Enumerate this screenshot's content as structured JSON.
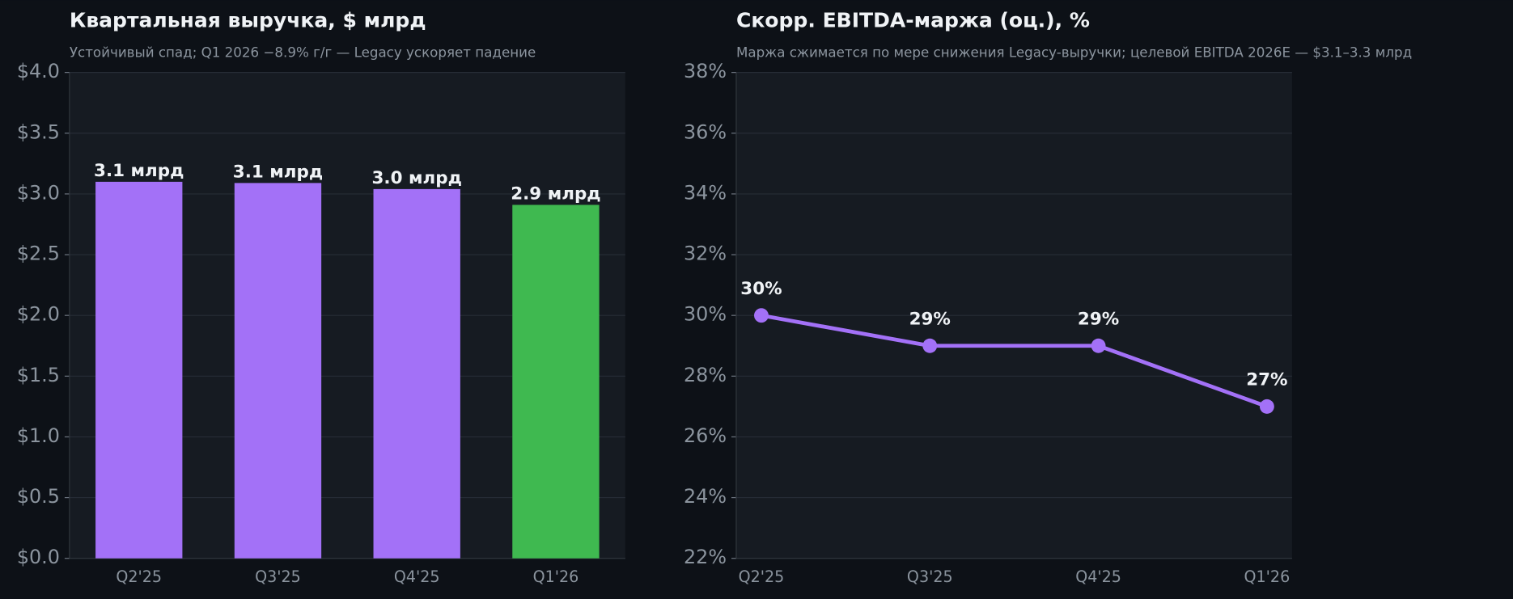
{
  "chart_data": [
    {
      "type": "bar",
      "title": "Квартальная выручка, $ млрд",
      "subtitle": "Устойчивый спад; Q1 2026 −8.9% г/г — Legacy ускоряет падение",
      "categories": [
        "Q2'25",
        "Q3'25",
        "Q4'25",
        "Q1'26"
      ],
      "values": [
        3.1,
        3.09,
        3.04,
        2.91
      ],
      "value_labels": [
        "3.1 млрд",
        "3.1 млрд",
        "3.0 млрд",
        "2.9 млрд"
      ],
      "colors": [
        "#a371f7",
        "#a371f7",
        "#a371f7",
        "#3fb950"
      ],
      "ylim": [
        0,
        4
      ],
      "yticks": [
        {
          "value": 0,
          "label": "$0.0"
        },
        {
          "value": 0.5,
          "label": "$0.5"
        },
        {
          "value": 1,
          "label": "$1.0"
        },
        {
          "value": 1.5,
          "label": "$1.5"
        },
        {
          "value": 2,
          "label": "$2.0"
        },
        {
          "value": 2.5,
          "label": "$2.5"
        },
        {
          "value": 3,
          "label": "$3.0"
        },
        {
          "value": 3.5,
          "label": "$3.5"
        },
        {
          "value": 4,
          "label": "$4.0"
        }
      ],
      "grid": true
    },
    {
      "type": "line",
      "title": "Скорр. EBITDA-маржа (оц.), %",
      "subtitle": "Маржа сжимается по мере снижения Legacy-выручки; целевой EBITDA 2026E — $3.1–3.3 млрд",
      "categories": [
        "Q2'25",
        "Q3'25",
        "Q4'25",
        "Q1'26"
      ],
      "values": [
        30,
        29,
        29,
        27
      ],
      "value_labels": [
        "30%",
        "29%",
        "29%",
        "27%"
      ],
      "color": "#a371f7",
      "ylim": [
        22,
        38
      ],
      "yticks": [
        {
          "value": 22,
          "label": "22%"
        },
        {
          "value": 24,
          "label": "24%"
        },
        {
          "value": 26,
          "label": "26%"
        },
        {
          "value": 28,
          "label": "28%"
        },
        {
          "value": 30,
          "label": "30%"
        },
        {
          "value": 32,
          "label": "32%"
        },
        {
          "value": 34,
          "label": "34%"
        },
        {
          "value": 36,
          "label": "36%"
        },
        {
          "value": 38,
          "label": "38%"
        }
      ],
      "grid": true
    }
  ]
}
